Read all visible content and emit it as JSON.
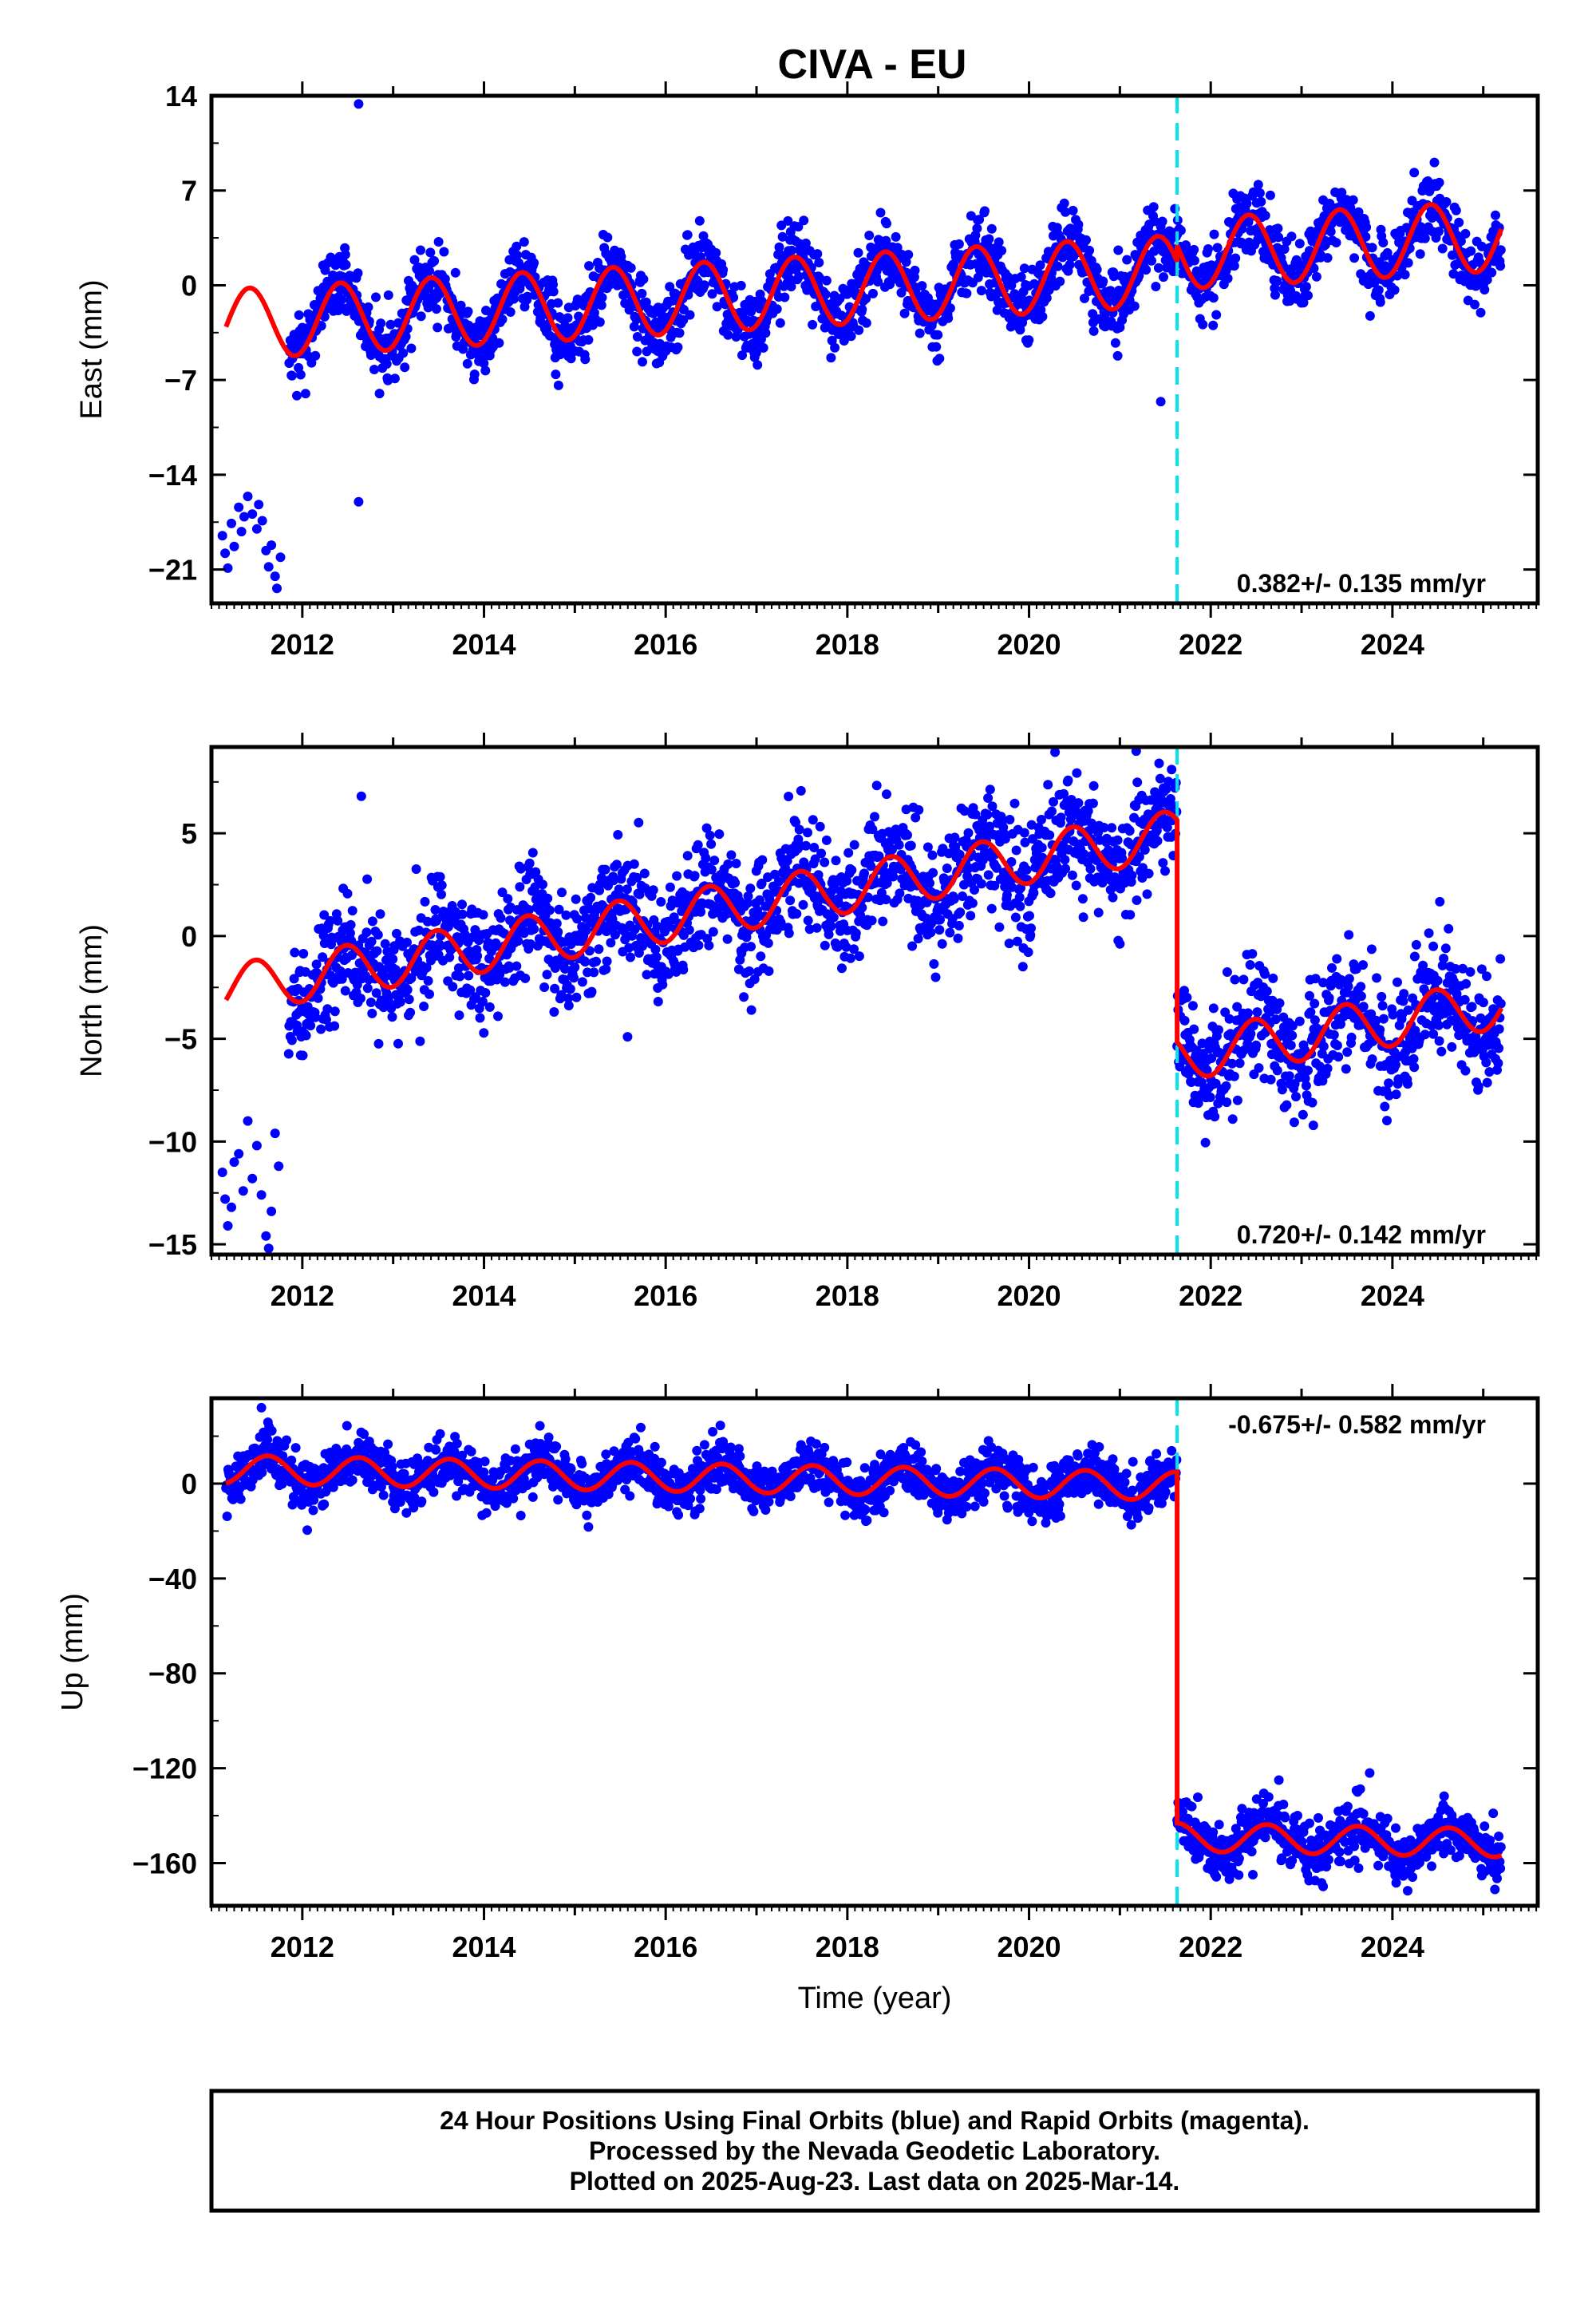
{
  "chart_data": [
    {
      "type": "scatter",
      "title": "CIVA - EU",
      "ylabel": "East (mm)",
      "xlabel": "",
      "xlim": [
        2011.0,
        2025.6
      ],
      "ylim": [
        -23.5,
        14
      ],
      "yticks": [
        14,
        7,
        0,
        -7,
        -14,
        -21
      ],
      "yticklabels": [
        "14",
        "7",
        "0",
        "−7",
        "−14",
        "−21"
      ],
      "xticks": [
        2012,
        2014,
        2016,
        2018,
        2020,
        2022,
        2024
      ],
      "xticklabels": [
        "2012",
        "2014",
        "2016",
        "2018",
        "2020",
        "2022",
        "2024"
      ],
      "rate_label": "0.382+/- 0.135 mm/yr",
      "rate_position": "bottom-right",
      "offset_epoch": 2021.63,
      "data_range": [
        2011.16,
        2025.2
      ],
      "model": {
        "a0": -2.9,
        "rate": 0.382,
        "amp": 2.6,
        "phase_peak": 0.42,
        "jump": 1.2
      },
      "points_summary": {
        "pre_center": -0.8,
        "post_center": 4.7,
        "scatter": 1.3
      },
      "early_outliers": [
        [
          2011.12,
          -18.5
        ],
        [
          2011.15,
          -19.8
        ],
        [
          2011.18,
          -20.9
        ],
        [
          2011.22,
          -17.6
        ],
        [
          2011.25,
          -19.3
        ],
        [
          2011.3,
          -16.4
        ],
        [
          2011.33,
          -18.2
        ],
        [
          2011.36,
          -17.1
        ],
        [
          2011.4,
          -15.6
        ],
        [
          2011.45,
          -16.9
        ],
        [
          2011.5,
          -18.0
        ],
        [
          2011.52,
          -16.2
        ],
        [
          2011.56,
          -17.4
        ],
        [
          2011.6,
          -19.6
        ],
        [
          2011.63,
          -20.8
        ],
        [
          2011.66,
          -19.2
        ],
        [
          2011.7,
          -21.5
        ],
        [
          2011.72,
          -22.4
        ],
        [
          2011.76,
          -20.1
        ]
      ],
      "isolated_points": [
        [
          2012.62,
          13.4
        ],
        [
          2012.62,
          -16.0
        ],
        [
          2021.45,
          -8.6
        ],
        [
          2012.85,
          -8.0
        ]
      ]
    },
    {
      "type": "scatter",
      "title": "",
      "ylabel": "North (mm)",
      "xlabel": "",
      "xlim": [
        2011.0,
        2025.6
      ],
      "ylim": [
        -15.5,
        9.2
      ],
      "yticks": [
        5,
        0,
        -5,
        -10,
        -15
      ],
      "yticklabels": [
        "5",
        "0",
        "−5",
        "−10",
        "−15"
      ],
      "xticks": [
        2012,
        2014,
        2016,
        2018,
        2020,
        2022,
        2024
      ],
      "xticklabels": [
        "2012",
        "2014",
        "2016",
        "2018",
        "2020",
        "2022",
        "2024"
      ],
      "rate_label": "0.720+/- 0.142 mm/yr",
      "rate_position": "bottom-right",
      "offset_epoch": 2021.63,
      "data_range": [
        2011.16,
        2025.2
      ],
      "model": {
        "a0": -2.6,
        "rate": 0.72,
        "amp": 1.2,
        "phase_peak": 0.48,
        "jump": -10.8
      },
      "points_summary": {
        "pre_center": 1.0,
        "post_center": -6.0,
        "scatter": 1.4
      },
      "early_outliers": [
        [
          2011.12,
          -11.5
        ],
        [
          2011.15,
          -12.8
        ],
        [
          2011.18,
          -14.1
        ],
        [
          2011.22,
          -13.2
        ],
        [
          2011.25,
          -11.0
        ],
        [
          2011.3,
          -10.6
        ],
        [
          2011.35,
          -12.4
        ],
        [
          2011.4,
          -9.0
        ],
        [
          2011.45,
          -11.8
        ],
        [
          2011.5,
          -10.2
        ],
        [
          2011.55,
          -12.6
        ],
        [
          2011.6,
          -14.6
        ],
        [
          2011.63,
          -15.2
        ],
        [
          2011.66,
          -13.4
        ],
        [
          2011.7,
          -9.6
        ],
        [
          2011.74,
          -11.2
        ]
      ],
      "isolated_points": [
        [
          2012.65,
          6.8
        ],
        [
          2021.18,
          9.0
        ],
        [
          2015.58,
          -4.9
        ],
        [
          2024.45,
          -0.5
        ]
      ]
    },
    {
      "type": "scatter",
      "title": "",
      "ylabel": "Up (mm)",
      "xlabel": "Time (year)",
      "xlim": [
        2011.0,
        2025.6
      ],
      "ylim": [
        -178,
        36
      ],
      "yticks": [
        0,
        -40,
        -80,
        -120,
        -160
      ],
      "yticklabels": [
        "0",
        "−40",
        "−80",
        "−120",
        "−160"
      ],
      "xticks": [
        2012,
        2014,
        2016,
        2018,
        2020,
        2022,
        2024
      ],
      "xticklabels": [
        "2012",
        "2014",
        "2016",
        "2018",
        "2020",
        "2022",
        "2024"
      ],
      "rate_label": "-0.675+/- 0.582 mm/yr",
      "rate_position": "top-right",
      "offset_epoch": 2021.63,
      "data_range": [
        2011.16,
        2025.2
      ],
      "model": {
        "a0": 6.0,
        "rate": -0.675,
        "amp": 6.0,
        "phase_peak": 0.62,
        "jump": -148
      },
      "points_summary": {
        "pre_center": 3.0,
        "post_center": -152.0,
        "scatter": 5.5
      },
      "early_outliers": [],
      "isolated_points": [
        [
          2011.55,
          32
        ],
        [
          2023.75,
          -122
        ],
        [
          2022.75,
          -125
        ]
      ]
    }
  ],
  "colors": {
    "points": "#0000ff",
    "model_line": "#ff0000",
    "offset_line": "#00e5ee",
    "frame": "#000000"
  },
  "footer": {
    "line1": "24 Hour Positions Using Final Orbits (blue) and Rapid Orbits (magenta).",
    "line2": "Processed by the Nevada Geodetic Laboratory.",
    "line3": "Plotted on 2025-Aug-23. Last data on 2025-Mar-14."
  }
}
